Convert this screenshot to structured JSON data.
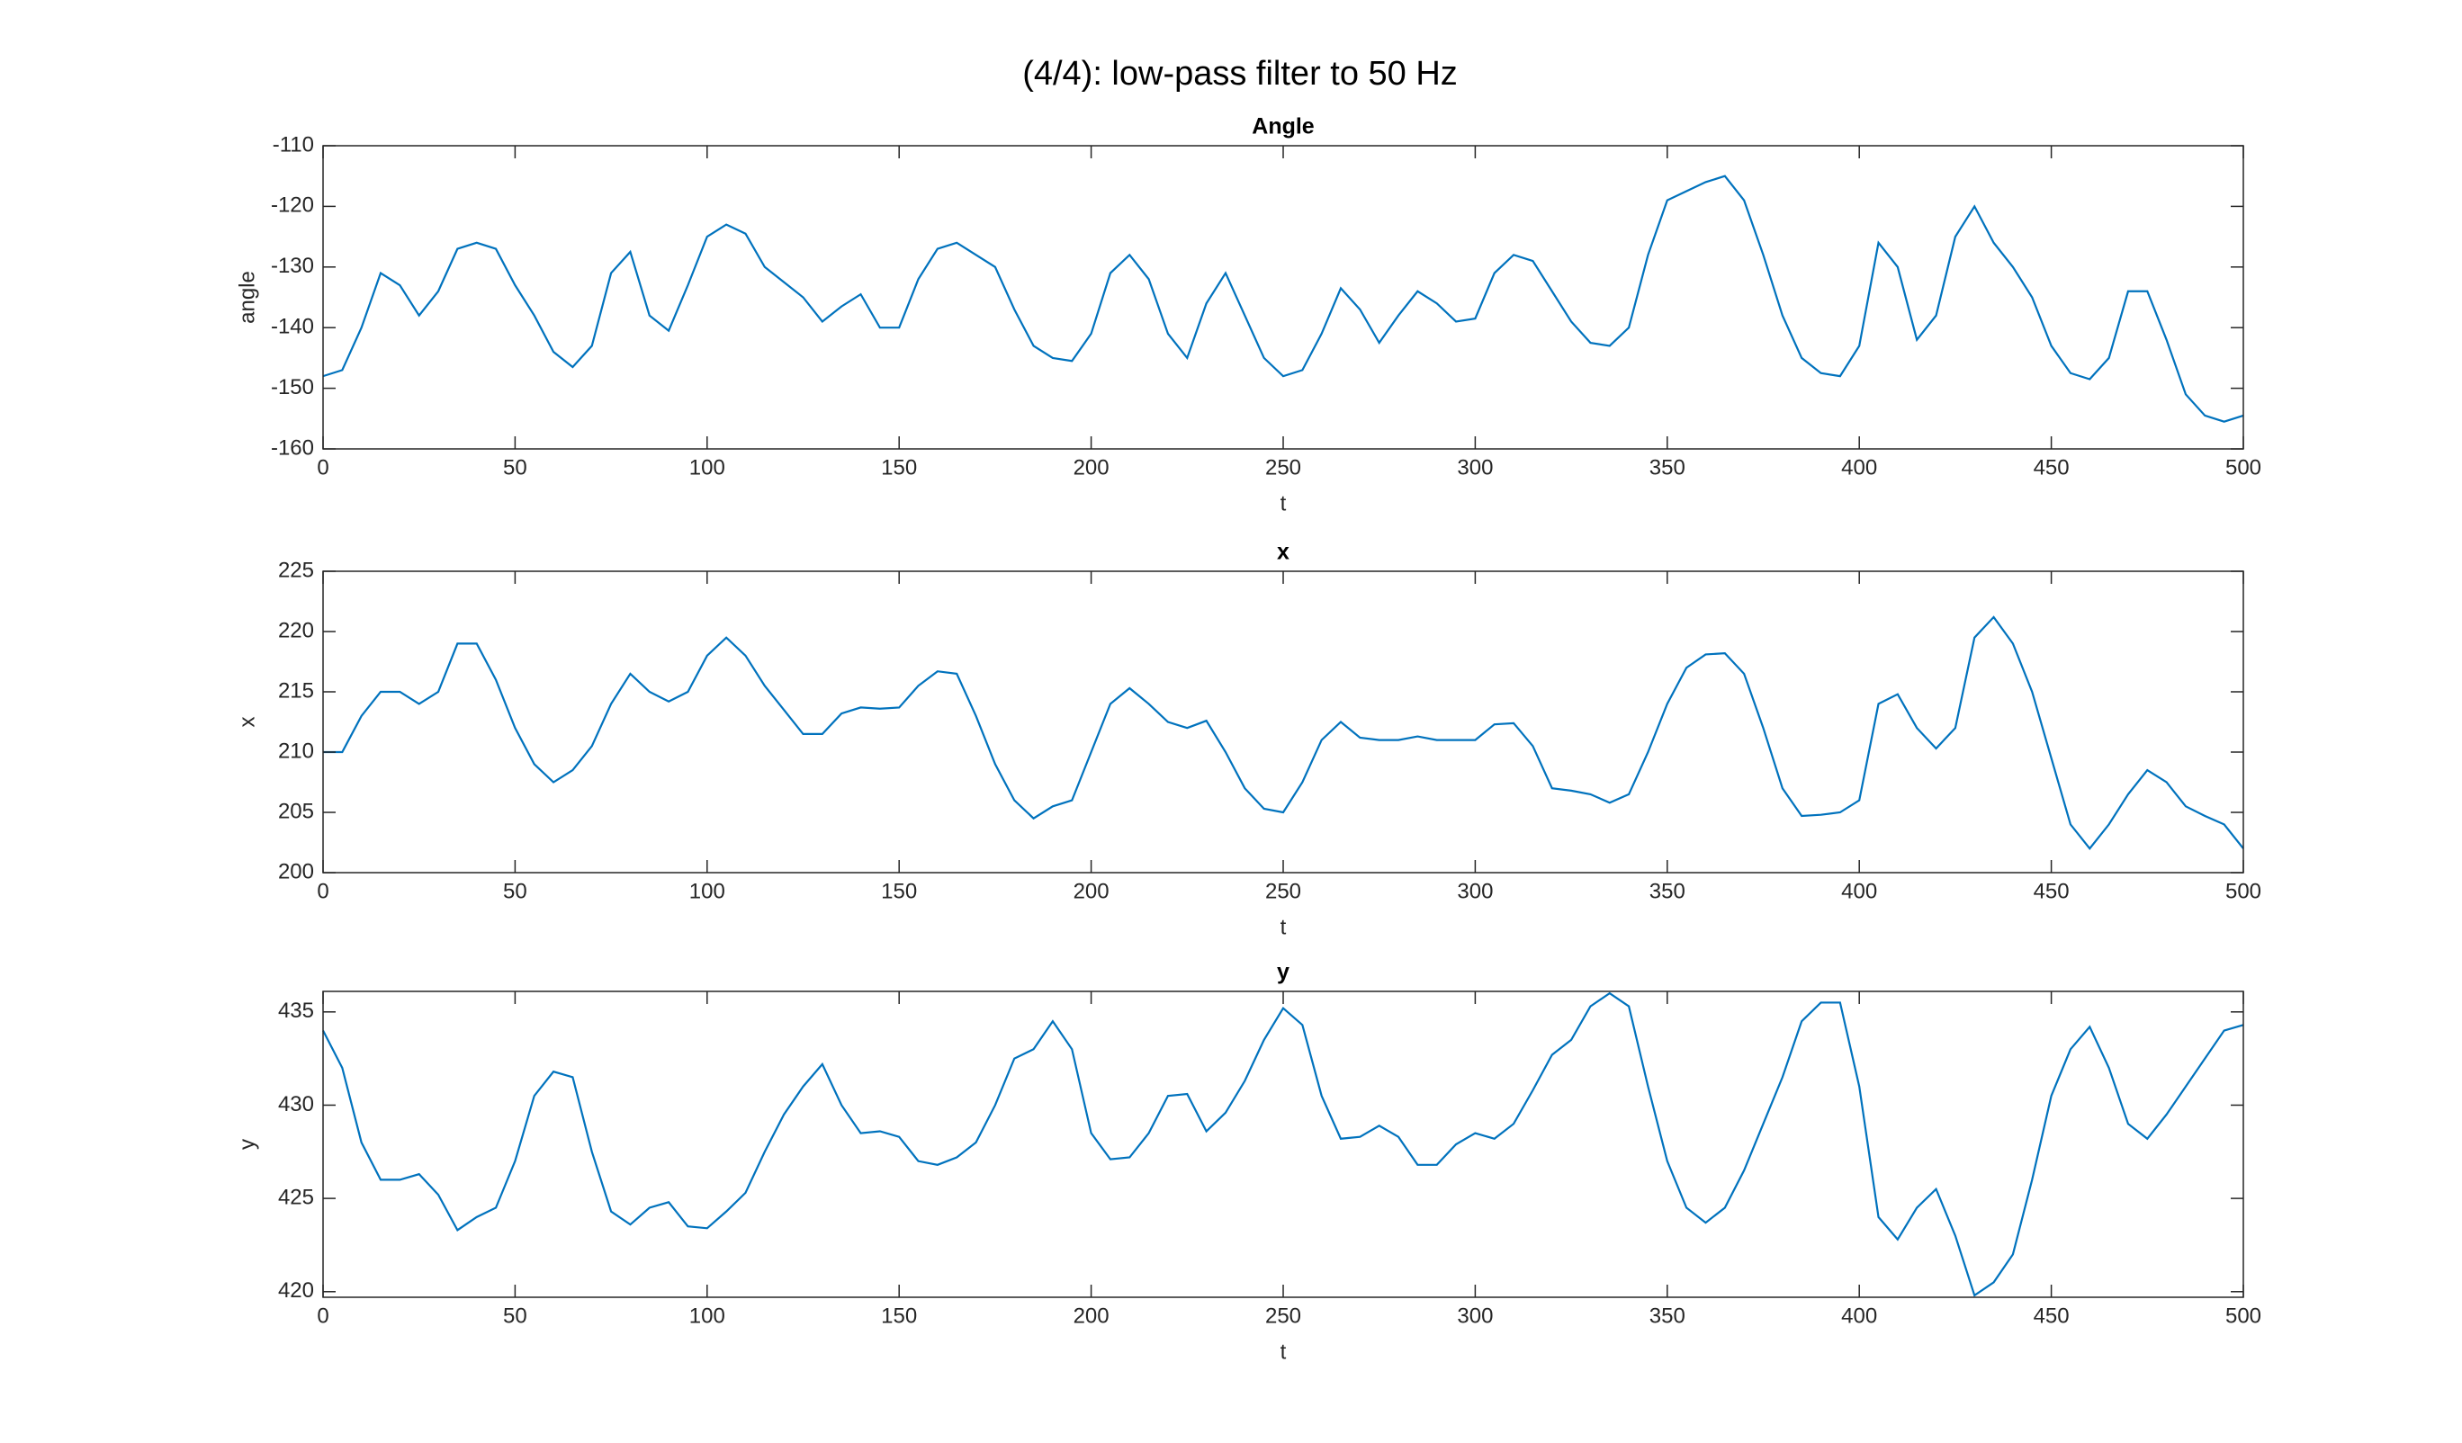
{
  "title": "(4/4): low-pass filter to 50 Hz",
  "chart_data": [
    {
      "type": "line",
      "title": "Angle",
      "xlabel": "t",
      "ylabel": "angle",
      "color": "#0072bd",
      "xlim": [
        0,
        500
      ],
      "xticks": [
        0,
        50,
        100,
        150,
        200,
        250,
        300,
        350,
        400,
        450,
        500
      ],
      "ylim": [
        -160,
        -110
      ],
      "yticks": [
        -160,
        -150,
        -140,
        -130,
        -120,
        -110
      ],
      "x": [
        0,
        5,
        10,
        15,
        20,
        25,
        30,
        35,
        40,
        45,
        50,
        55,
        60,
        65,
        70,
        75,
        80,
        85,
        90,
        95,
        100,
        105,
        110,
        115,
        120,
        125,
        130,
        135,
        140,
        145,
        150,
        155,
        160,
        165,
        170,
        175,
        180,
        185,
        190,
        195,
        200,
        205,
        210,
        215,
        220,
        225,
        230,
        235,
        240,
        245,
        250,
        255,
        260,
        265,
        270,
        275,
        280,
        285,
        290,
        295,
        300,
        305,
        310,
        315,
        320,
        325,
        330,
        335,
        340,
        345,
        350,
        355,
        360,
        365,
        370,
        375,
        380,
        385,
        390,
        395,
        400,
        405,
        410,
        415,
        420,
        425,
        430,
        435,
        440,
        445,
        450,
        455,
        460,
        465,
        470,
        475,
        480,
        485,
        490,
        495,
        500
      ],
      "values": [
        -148,
        -147,
        -140,
        -131,
        -133,
        -138,
        -134,
        -127,
        -126,
        -127,
        -133,
        -138,
        -144,
        -146.5,
        -143,
        -131,
        -127.5,
        -138,
        -140.5,
        -133,
        -125,
        -123,
        -124.5,
        -130,
        -132.5,
        -135,
        -139,
        -136.5,
        -134.5,
        -140,
        -140,
        -132,
        -127,
        -126,
        -128,
        -130,
        -137,
        -143,
        -145,
        -145.5,
        -141,
        -131,
        -128,
        -132,
        -141,
        -145,
        -136,
        -131,
        -138,
        -145,
        -148,
        -147,
        -141,
        -133.5,
        -137,
        -142.5,
        -138,
        -134,
        -136,
        -139,
        -138.5,
        -131,
        -128,
        -129,
        -134,
        -139,
        -142.5,
        -143,
        -140,
        -128,
        -119,
        -117.5,
        -116,
        -115,
        -119,
        -128,
        -138,
        -145,
        -147.5,
        -148,
        -143,
        -126,
        -130,
        -142,
        -138,
        -125,
        -120,
        -126,
        -130,
        -135,
        -143,
        -147.5,
        -148.5,
        -145,
        -134,
        -134,
        -142,
        -151,
        -154.5,
        -155.5,
        -154.5
      ]
    },
    {
      "type": "line",
      "title": "x",
      "xlabel": "t",
      "ylabel": "x",
      "color": "#0072bd",
      "xlim": [
        0,
        500
      ],
      "xticks": [
        0,
        50,
        100,
        150,
        200,
        250,
        300,
        350,
        400,
        450,
        500
      ],
      "ylim": [
        200,
        225
      ],
      "yticks": [
        200,
        205,
        210,
        215,
        220,
        225
      ],
      "x": [
        0,
        5,
        10,
        15,
        20,
        25,
        30,
        35,
        40,
        45,
        50,
        55,
        60,
        65,
        70,
        75,
        80,
        85,
        90,
        95,
        100,
        105,
        110,
        115,
        120,
        125,
        130,
        135,
        140,
        145,
        150,
        155,
        160,
        165,
        170,
        175,
        180,
        185,
        190,
        195,
        200,
        205,
        210,
        215,
        220,
        225,
        230,
        235,
        240,
        245,
        250,
        255,
        260,
        265,
        270,
        275,
        280,
        285,
        290,
        295,
        300,
        305,
        310,
        315,
        320,
        325,
        330,
        335,
        340,
        345,
        350,
        355,
        360,
        365,
        370,
        375,
        380,
        385,
        390,
        395,
        400,
        405,
        410,
        415,
        420,
        425,
        430,
        435,
        440,
        445,
        450,
        455,
        460,
        465,
        470,
        475,
        480,
        485,
        490,
        495,
        500
      ],
      "values": [
        210,
        210,
        213,
        215,
        215,
        214,
        215,
        219,
        219,
        216,
        212,
        209,
        207.5,
        208.5,
        210.5,
        214,
        216.5,
        215,
        214.2,
        215,
        218,
        219.5,
        218,
        215.5,
        213.5,
        211.5,
        211.5,
        213.2,
        213.7,
        213.6,
        213.7,
        215.5,
        216.7,
        216.5,
        213,
        209,
        206,
        204.5,
        205.5,
        206,
        210,
        214,
        215.3,
        214,
        212.5,
        212,
        212.6,
        210,
        207,
        205.3,
        205,
        207.5,
        211,
        212.5,
        211.2,
        211,
        211,
        211.3,
        211,
        211,
        211,
        212.3,
        212.4,
        210.5,
        207,
        206.8,
        206.5,
        205.8,
        206.5,
        210,
        214,
        217,
        218.1,
        218.2,
        216.5,
        212,
        207,
        204.7,
        204.8,
        205,
        206,
        214,
        214.8,
        212,
        210.3,
        212,
        219.5,
        221.2,
        219,
        215,
        209.5,
        204,
        202,
        204,
        206.5,
        208.5,
        207.5,
        205.5,
        204.7,
        204,
        202
      ]
    },
    {
      "type": "line",
      "title": "y",
      "xlabel": "t",
      "ylabel": "y",
      "color": "#0072bd",
      "xlim": [
        0,
        500
      ],
      "xticks": [
        0,
        50,
        100,
        150,
        200,
        250,
        300,
        350,
        400,
        450,
        500
      ],
      "ylim": [
        419.7,
        436.1
      ],
      "yticks": [
        420,
        425,
        430,
        435
      ],
      "x": [
        0,
        5,
        10,
        15,
        20,
        25,
        30,
        35,
        40,
        45,
        50,
        55,
        60,
        65,
        70,
        75,
        80,
        85,
        90,
        95,
        100,
        105,
        110,
        115,
        120,
        125,
        130,
        135,
        140,
        145,
        150,
        155,
        160,
        165,
        170,
        175,
        180,
        185,
        190,
        195,
        200,
        205,
        210,
        215,
        220,
        225,
        230,
        235,
        240,
        245,
        250,
        255,
        260,
        265,
        270,
        275,
        280,
        285,
        290,
        295,
        300,
        305,
        310,
        315,
        320,
        325,
        330,
        335,
        340,
        345,
        350,
        355,
        360,
        365,
        370,
        375,
        380,
        385,
        390,
        395,
        400,
        405,
        410,
        415,
        420,
        425,
        430,
        435,
        440,
        445,
        450,
        455,
        460,
        465,
        470,
        475,
        480,
        485,
        490,
        495,
        500
      ],
      "values": [
        434,
        432,
        428,
        426,
        426,
        426.3,
        425.2,
        423.3,
        424,
        424.5,
        427,
        430.5,
        431.8,
        431.5,
        427.5,
        424.3,
        423.6,
        424.5,
        424.8,
        423.5,
        423.4,
        424.3,
        425.3,
        427.5,
        429.5,
        431,
        432.2,
        430,
        428.5,
        428.6,
        428.3,
        427,
        426.8,
        427.2,
        428,
        430,
        432.5,
        433,
        434.5,
        433,
        428.5,
        427.1,
        427.2,
        428.5,
        430.5,
        430.6,
        428.6,
        429.6,
        431.3,
        433.5,
        435.2,
        434.3,
        430.5,
        428.2,
        428.3,
        428.9,
        428.3,
        426.8,
        426.8,
        427.9,
        428.5,
        428.2,
        429,
        430.8,
        432.7,
        433.5,
        435.3,
        436,
        435.3,
        431,
        427,
        424.5,
        423.7,
        424.5,
        426.5,
        429,
        431.5,
        434.5,
        435.5,
        435.5,
        431,
        424,
        422.8,
        424.5,
        425.5,
        423,
        419.8,
        420.5,
        422,
        426,
        430.5,
        433,
        434.2,
        432,
        429,
        428.2,
        429.5,
        431,
        432.5,
        434,
        434.3
      ]
    }
  ]
}
